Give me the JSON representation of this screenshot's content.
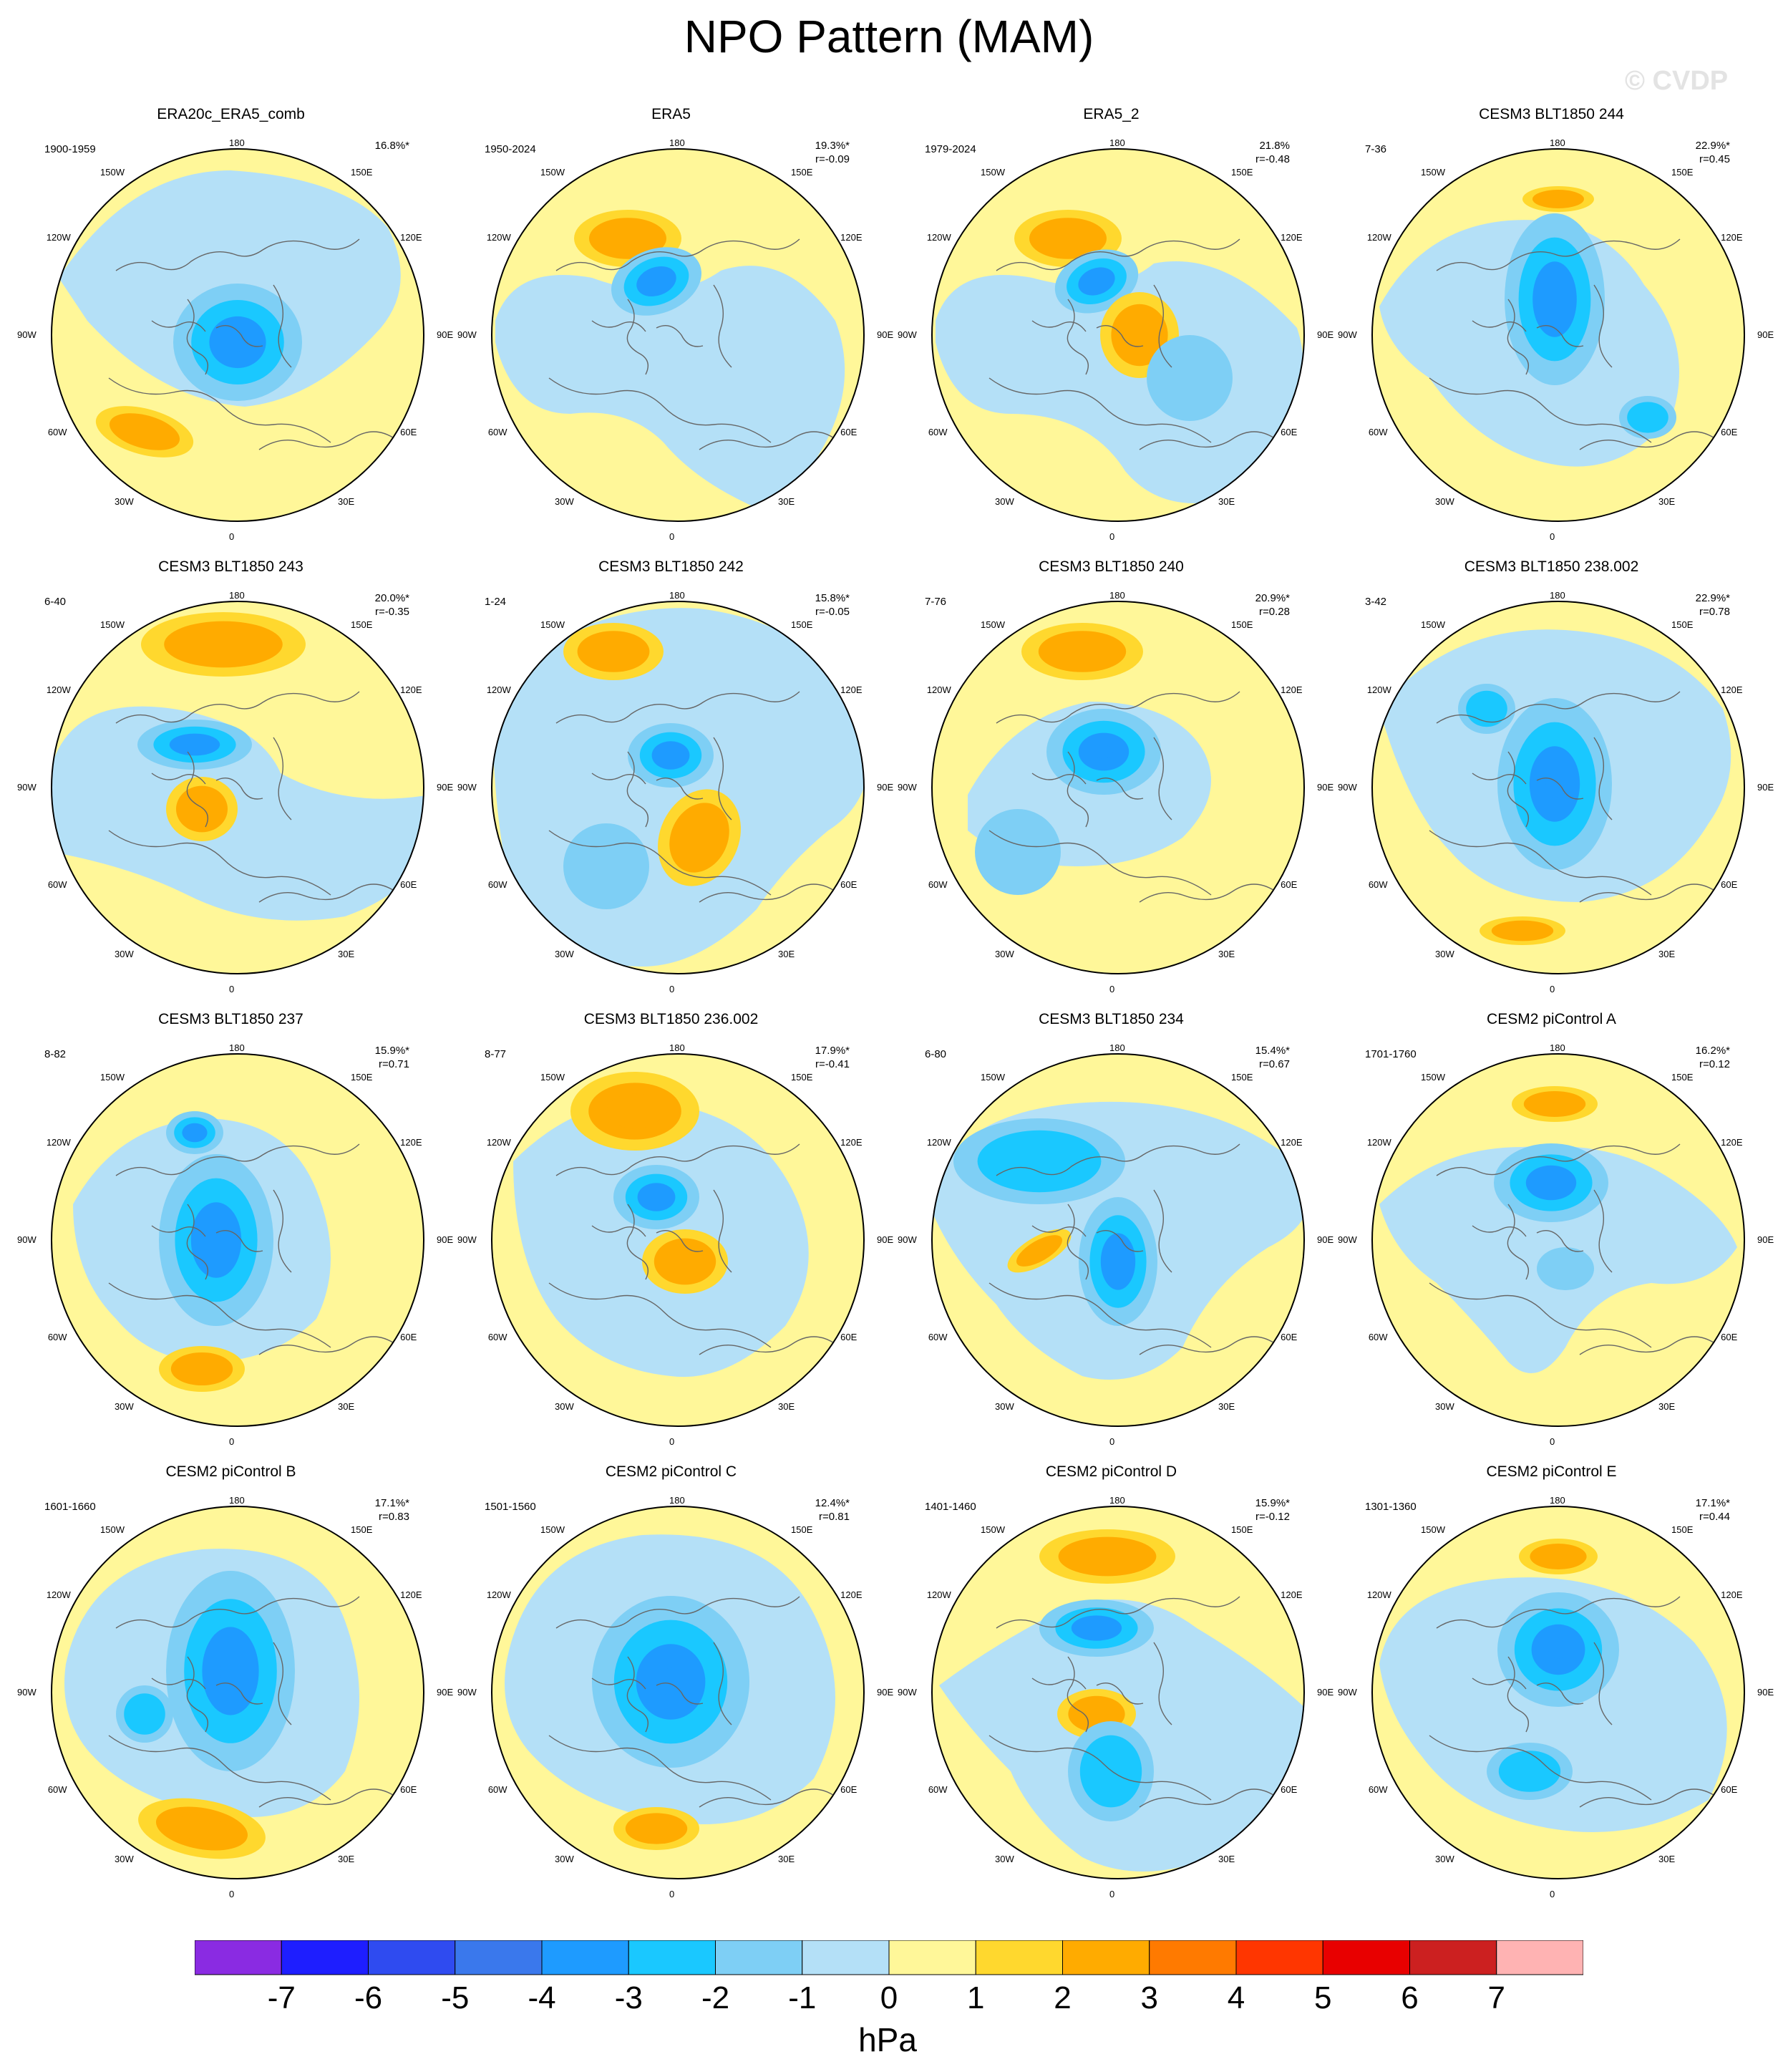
{
  "title": "NPO Pattern (MAM)",
  "watermark": "© CVDP",
  "units": "hPa",
  "lon_labels": [
    "180",
    "150E",
    "120E",
    "90E",
    "60E",
    "30E",
    "0",
    "30W",
    "60W",
    "90W",
    "120W",
    "150W"
  ],
  "colorbar": {
    "labels": [
      "-7",
      "-6",
      "-5",
      "-4",
      "-3",
      "-2",
      "-1",
      "0",
      "1",
      "2",
      "3",
      "4",
      "5",
      "6",
      "7"
    ],
    "colors": [
      "#8a2be2",
      "#1e1eff",
      "#2f4bf0",
      "#3a78ec",
      "#1e9bff",
      "#1ac8ff",
      "#7ecff5",
      "#b4e0f7",
      "#fff799",
      "#ffd82e",
      "#ffab00",
      "#ff7a00",
      "#ff3600",
      "#e80000",
      "#cc2020",
      "#ffb3b3"
    ]
  },
  "panels": [
    {
      "title": "ERA20c_ERA5_comb",
      "period": "1900-1959",
      "pct": "16.8%*",
      "r": ""
    },
    {
      "title": "ERA5",
      "period": "1950-2024",
      "pct": "19.3%*",
      "r": "r=-0.09"
    },
    {
      "title": "ERA5_2",
      "period": "1979-2024",
      "pct": "21.8%",
      "r": "r=-0.48"
    },
    {
      "title": "CESM3 BLT1850 244",
      "period": "7-36",
      "pct": "22.9%*",
      "r": "r=0.45"
    },
    {
      "title": "CESM3 BLT1850 243",
      "period": "6-40",
      "pct": "20.0%*",
      "r": "r=-0.35"
    },
    {
      "title": "CESM3 BLT1850 242",
      "period": "1-24",
      "pct": "15.8%*",
      "r": "r=-0.05"
    },
    {
      "title": "CESM3 BLT1850 240",
      "period": "7-76",
      "pct": "20.9%*",
      "r": "r=0.28"
    },
    {
      "title": "CESM3 BLT1850 238.002",
      "period": "3-42",
      "pct": "22.9%*",
      "r": "r=0.78"
    },
    {
      "title": "CESM3 BLT1850 237",
      "period": "8-82",
      "pct": "15.9%*",
      "r": "r=0.71"
    },
    {
      "title": "CESM3 BLT1850 236.002",
      "period": "8-77",
      "pct": "17.9%*",
      "r": "r=-0.41"
    },
    {
      "title": "CESM3 BLT1850 234",
      "period": "6-80",
      "pct": "15.4%*",
      "r": "r=0.67"
    },
    {
      "title": "CESM2 piControl A",
      "period": "1701-1760",
      "pct": "16.2%*",
      "r": "r=0.12"
    },
    {
      "title": "CESM2 piControl B",
      "period": "1601-1660",
      "pct": "17.1%*",
      "r": "r=0.83"
    },
    {
      "title": "CESM2 piControl C",
      "period": "1501-1560",
      "pct": "12.4%*",
      "r": "r=0.81"
    },
    {
      "title": "CESM2 piControl D",
      "period": "1401-1460",
      "pct": "15.9%*",
      "r": "r=-0.12"
    },
    {
      "title": "CESM2 piControl E",
      "period": "1301-1360",
      "pct": "17.1%*",
      "r": "r=0.44"
    }
  ]
}
